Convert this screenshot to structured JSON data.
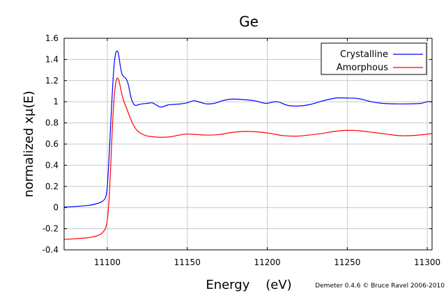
{
  "chart_data": {
    "type": "line",
    "title": "Ge",
    "xlabel": "Energy    (eV)",
    "ylabel": "normalized xμ(E)",
    "credit": "Demeter 0.4.6 © Bruce Ravel 2006-2010",
    "xlim": [
      11073,
      11303
    ],
    "ylim": [
      -0.4,
      1.6
    ],
    "x_ticks": [
      11100,
      11150,
      11200,
      11250,
      11300
    ],
    "y_ticks": [
      -0.4,
      -0.2,
      0,
      0.2,
      0.4,
      0.6,
      0.8,
      1,
      1.2,
      1.4,
      1.6
    ],
    "grid": true,
    "legend_position": "top-right",
    "series": [
      {
        "name": "Crystalline",
        "color": "#0000ff",
        "x": [
          11073,
          11080,
          11088,
          11093,
          11097,
          11099,
          11100,
          11101,
          11102,
          11103,
          11104,
          11105,
          11106,
          11107,
          11108,
          11109,
          11110,
          11111,
          11112,
          11113,
          11114,
          11115,
          11116,
          11117,
          11118,
          11120,
          11122,
          11125,
          11128,
          11130,
          11133,
          11135,
          11138,
          11142,
          11146,
          11150,
          11154,
          11158,
          11162,
          11167,
          11172,
          11178,
          11185,
          11192,
          11199,
          11206,
          11213,
          11220,
          11227,
          11235,
          11243,
          11250,
          11257,
          11265,
          11272,
          11280,
          11288,
          11296,
          11300,
          11303
        ],
        "y": [
          0.005,
          0.01,
          0.02,
          0.035,
          0.06,
          0.1,
          0.2,
          0.45,
          0.75,
          1.05,
          1.3,
          1.44,
          1.48,
          1.45,
          1.35,
          1.27,
          1.24,
          1.23,
          1.21,
          1.17,
          1.1,
          1.03,
          0.99,
          0.97,
          0.965,
          0.975,
          0.98,
          0.985,
          0.99,
          0.975,
          0.95,
          0.955,
          0.97,
          0.975,
          0.98,
          0.99,
          1.01,
          0.995,
          0.98,
          0.985,
          1.01,
          1.025,
          1.02,
          1.01,
          0.985,
          1.0,
          0.965,
          0.96,
          0.975,
          1.01,
          1.035,
          1.035,
          1.03,
          1.0,
          0.985,
          0.98,
          0.98,
          0.985,
          1.0,
          1.0
        ]
      },
      {
        "name": "Amorphous",
        "color": "#ff0000",
        "x": [
          11073,
          11080,
          11088,
          11093,
          11096,
          11098,
          11099,
          11100,
          11101,
          11102,
          11103,
          11104,
          11105,
          11106,
          11107,
          11108,
          11109,
          11110,
          11112,
          11114,
          11116,
          11118,
          11120,
          11124,
          11128,
          11132,
          11136,
          11140,
          11145,
          11150,
          11156,
          11162,
          11170,
          11178,
          11186,
          11194,
          11202,
          11210,
          11218,
          11226,
          11234,
          11242,
          11250,
          11258,
          11266,
          11274,
          11282,
          11290,
          11298,
          11303
        ],
        "y": [
          -0.3,
          -0.295,
          -0.285,
          -0.27,
          -0.25,
          -0.22,
          -0.19,
          -0.12,
          0.05,
          0.35,
          0.7,
          0.98,
          1.15,
          1.22,
          1.21,
          1.15,
          1.08,
          1.02,
          0.94,
          0.86,
          0.79,
          0.74,
          0.71,
          0.68,
          0.67,
          0.665,
          0.665,
          0.67,
          0.685,
          0.695,
          0.69,
          0.685,
          0.69,
          0.71,
          0.72,
          0.715,
          0.7,
          0.68,
          0.675,
          0.685,
          0.7,
          0.72,
          0.73,
          0.725,
          0.71,
          0.695,
          0.68,
          0.68,
          0.69,
          0.7
        ]
      }
    ]
  }
}
